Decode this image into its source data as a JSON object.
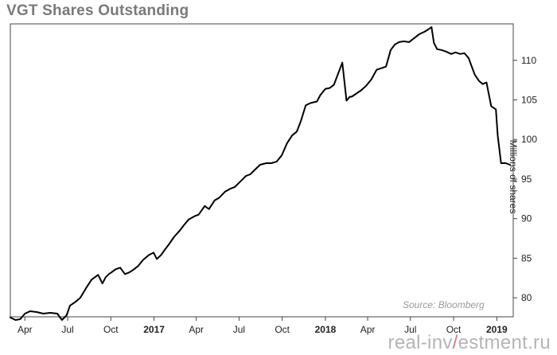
{
  "title": "VGT Shares Outstanding",
  "watermark": {
    "before": "real-inv",
    "slash": "/",
    "after": "estment.ru"
  },
  "chart_data": {
    "type": "line",
    "title": "VGT Shares Outstanding",
    "xlabel": "",
    "ylabel": "Millions of shares",
    "source": "Source: Bloomberg",
    "ylim": [
      77.6,
      114.6
    ],
    "xlim": [
      "2016-03-01",
      "2019-02-05"
    ],
    "y_ticks": [
      80,
      85,
      90,
      95,
      100,
      105,
      110
    ],
    "y_axis_side": "right",
    "x_ticks": [
      {
        "date": "2016-04-01",
        "label": "Apr",
        "bold": false
      },
      {
        "date": "2016-07-01",
        "label": "Jul",
        "bold": false
      },
      {
        "date": "2016-10-01",
        "label": "Oct",
        "bold": false
      },
      {
        "date": "2017-01-01",
        "label": "2017",
        "bold": true
      },
      {
        "date": "2017-04-01",
        "label": "Apr",
        "bold": false
      },
      {
        "date": "2017-07-01",
        "label": "Jul",
        "bold": false
      },
      {
        "date": "2017-10-01",
        "label": "Oct",
        "bold": false
      },
      {
        "date": "2018-01-01",
        "label": "2018",
        "bold": true
      },
      {
        "date": "2018-04-01",
        "label": "Apr",
        "bold": false
      },
      {
        "date": "2018-07-01",
        "label": "Jul",
        "bold": false
      },
      {
        "date": "2018-10-01",
        "label": "Oct",
        "bold": false
      },
      {
        "date": "2019-01-01",
        "label": "2019",
        "bold": true
      }
    ],
    "grid": false,
    "line_color": "#000000",
    "series": [
      {
        "x": [
          "2016-03-01",
          "2016-03-12",
          "2016-03-22",
          "2016-04-01",
          "2016-04-12",
          "2016-04-26",
          "2016-05-10",
          "2016-05-25",
          "2016-06-09",
          "2016-06-19",
          "2016-06-29",
          "2016-07-06",
          "2016-07-18",
          "2016-07-28",
          "2016-08-09",
          "2016-08-21",
          "2016-09-04",
          "2016-09-13",
          "2016-09-20",
          "2016-09-27",
          "2016-10-02",
          "2016-10-11",
          "2016-10-21",
          "2016-10-31",
          "2016-11-09",
          "2016-11-17",
          "2016-11-28",
          "2016-12-09",
          "2016-12-21",
          "2016-12-31",
          "2017-01-07",
          "2017-01-16",
          "2017-01-23",
          "2017-02-01",
          "2017-02-13",
          "2017-02-25",
          "2017-03-06",
          "2017-03-16",
          "2017-03-28",
          "2017-04-06",
          "2017-04-19",
          "2017-04-28",
          "2017-05-10",
          "2017-05-19",
          "2017-06-01",
          "2017-06-13",
          "2017-06-22",
          "2017-07-04",
          "2017-07-16",
          "2017-07-25",
          "2017-08-06",
          "2017-08-15",
          "2017-08-28",
          "2017-09-08",
          "2017-09-19",
          "2017-09-30",
          "2017-10-11",
          "2017-10-22",
          "2017-11-01",
          "2017-11-09",
          "2017-11-20",
          "2017-11-30",
          "2017-12-07",
          "2017-12-14",
          "2017-12-21",
          "2018-01-01",
          "2018-01-10",
          "2018-01-19",
          "2018-01-28",
          "2018-02-06",
          "2018-02-15",
          "2018-02-22",
          "2018-02-26",
          "2018-03-08",
          "2018-03-18",
          "2018-03-29",
          "2018-04-09",
          "2018-04-20",
          "2018-04-30",
          "2018-05-10",
          "2018-05-20",
          "2018-05-29",
          "2018-06-07",
          "2018-06-17",
          "2018-06-28",
          "2018-07-09",
          "2018-07-20",
          "2018-07-31",
          "2018-08-08",
          "2018-08-15",
          "2018-08-20",
          "2018-08-27",
          "2018-09-05",
          "2018-09-15",
          "2018-09-26",
          "2018-10-05",
          "2018-10-15",
          "2018-10-24",
          "2018-11-02",
          "2018-11-08",
          "2018-11-15",
          "2018-11-24",
          "2018-12-02",
          "2018-12-10",
          "2018-12-20",
          "2018-12-30",
          "2019-01-03",
          "2019-01-10",
          "2019-01-20",
          "2019-01-29"
        ],
        "y": [
          77.5,
          77.2,
          77.3,
          78.0,
          78.3,
          78.2,
          78.0,
          78.1,
          78.0,
          77.2,
          77.8,
          79.0,
          79.5,
          80.0,
          81.2,
          82.3,
          82.9,
          81.8,
          82.6,
          83.0,
          83.2,
          83.6,
          83.8,
          83.0,
          83.2,
          83.5,
          84.0,
          84.8,
          85.4,
          85.7,
          84.9,
          85.4,
          86.0,
          86.7,
          87.7,
          88.5,
          89.2,
          89.9,
          90.3,
          90.5,
          91.6,
          91.2,
          92.3,
          92.6,
          93.4,
          93.8,
          94.0,
          94.7,
          95.4,
          95.6,
          96.3,
          96.8,
          97.0,
          97.0,
          97.2,
          98.0,
          99.5,
          100.5,
          101.0,
          102.2,
          104.3,
          104.6,
          104.7,
          104.8,
          105.6,
          106.4,
          106.5,
          106.9,
          108.3,
          109.7,
          104.9,
          105.4,
          105.4,
          105.8,
          106.2,
          106.8,
          107.6,
          108.8,
          109.0,
          109.2,
          111.3,
          112.0,
          112.3,
          112.4,
          112.3,
          112.8,
          113.3,
          113.6,
          113.9,
          114.2,
          112.2,
          111.4,
          111.3,
          111.1,
          110.8,
          111.0,
          110.8,
          110.9,
          110.3,
          109.3,
          108.2,
          107.4,
          107.0,
          107.2,
          104.2,
          103.8,
          100.5,
          97.0,
          97.0,
          96.8
        ]
      }
    ]
  }
}
